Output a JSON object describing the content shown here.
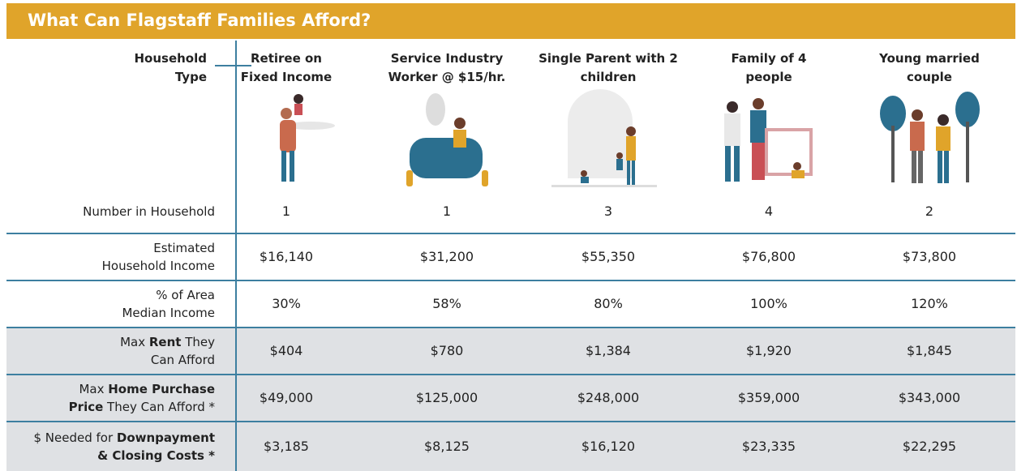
{
  "title": "What Can Flagstaff Families Afford?",
  "header": {
    "label_lines": [
      "Household",
      "Type"
    ],
    "columns": [
      {
        "lines": [
          "Retiree on",
          "Fixed Income"
        ]
      },
      {
        "lines": [
          "Service Industry",
          "Worker @ $15/hr."
        ]
      },
      {
        "lines": [
          "Single Parent with 2",
          "children"
        ]
      },
      {
        "lines": [
          "Family of 4",
          "people"
        ]
      },
      {
        "lines": [
          "Young married",
          "couple"
        ]
      }
    ]
  },
  "rows": [
    {
      "label": [
        [
          {
            "text": "Number in Household",
            "bold": false
          }
        ]
      ],
      "cells": [
        "1",
        "1",
        "3",
        "4",
        "2"
      ],
      "shaded": false
    },
    {
      "label": [
        [
          {
            "text": "Estimated",
            "bold": false
          }
        ],
        [
          {
            "text": "Household Income",
            "bold": false
          }
        ]
      ],
      "cells": [
        "$16,140",
        "$31,200",
        "$55,350",
        "$76,800",
        "$73,800"
      ],
      "shaded": false
    },
    {
      "label": [
        [
          {
            "text": "% of Area",
            "bold": false
          }
        ],
        [
          {
            "text": "Median Income",
            "bold": false
          }
        ]
      ],
      "cells": [
        "30%",
        "58%",
        "80%",
        "100%",
        "120%"
      ],
      "shaded": false
    },
    {
      "label": [
        [
          {
            "text": "Max ",
            "bold": false
          },
          {
            "text": "Rent",
            "bold": true
          },
          {
            "text": " They",
            "bold": false
          }
        ],
        [
          {
            "text": "Can Afford",
            "bold": false
          }
        ]
      ],
      "cells": [
        "$404",
        "$780",
        "$1,384",
        "$1,920",
        "$1,845"
      ],
      "shaded": true
    },
    {
      "label": [
        [
          {
            "text": "Max ",
            "bold": false
          },
          {
            "text": "Home Purchase",
            "bold": true
          }
        ],
        [
          {
            "text": "Price",
            "bold": true
          },
          {
            "text": " They Can Afford *",
            "bold": false
          }
        ]
      ],
      "cells": [
        "$49,000",
        "$125,000",
        "$248,000",
        "$359,000",
        "$343,000"
      ],
      "shaded": true
    },
    {
      "label": [
        [
          {
            "text": "$ Needed for ",
            "bold": false
          },
          {
            "text": "Downpayment",
            "bold": true
          }
        ],
        [
          {
            "text": "& Closing Costs *",
            "bold": true
          }
        ]
      ],
      "cells": [
        "$3,185",
        "$8,125",
        "$16,120",
        "$23,335",
        "$22,295"
      ],
      "shaded": true
    }
  ]
}
